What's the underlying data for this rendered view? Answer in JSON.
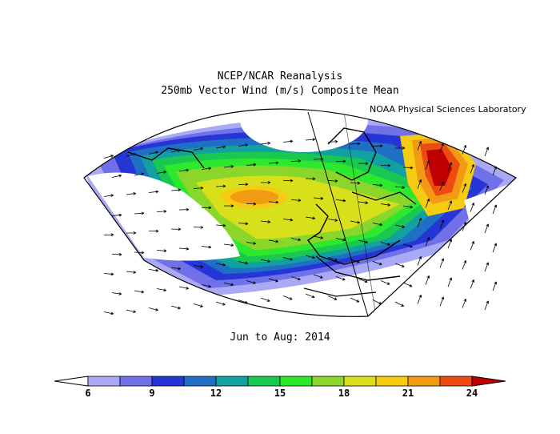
{
  "title_line1": "NCEP/NCAR Reanalysis",
  "title_line2": "250mb Vector Wind (m/s) Composite Mean",
  "credit": "NOAA Physical Sciences Laboratory",
  "period": "Jun to Aug: 2014",
  "colorbar": {
    "min_arrow_color": "#ffffff",
    "max_arrow_color": "#c00000",
    "bins": [
      {
        "color": "#a9a9f5"
      },
      {
        "color": "#7070e8"
      },
      {
        "color": "#2535d6"
      },
      {
        "color": "#1f6fc4"
      },
      {
        "color": "#13a0a0"
      },
      {
        "color": "#18c850"
      },
      {
        "color": "#2ee82e"
      },
      {
        "color": "#8ad62a"
      },
      {
        "color": "#d8e01c"
      },
      {
        "color": "#f5cc12"
      },
      {
        "color": "#f29a14"
      },
      {
        "color": "#ec4c12"
      }
    ],
    "tick_labels": [
      "6",
      "9",
      "12",
      "15",
      "18",
      "21",
      "24"
    ]
  },
  "map": {
    "projection": "conic",
    "field": "250mb vector wind speed (m/s)",
    "features": [
      "jet stream core over North Atlantic",
      "wind speed maximum over eastern Europe"
    ]
  }
}
